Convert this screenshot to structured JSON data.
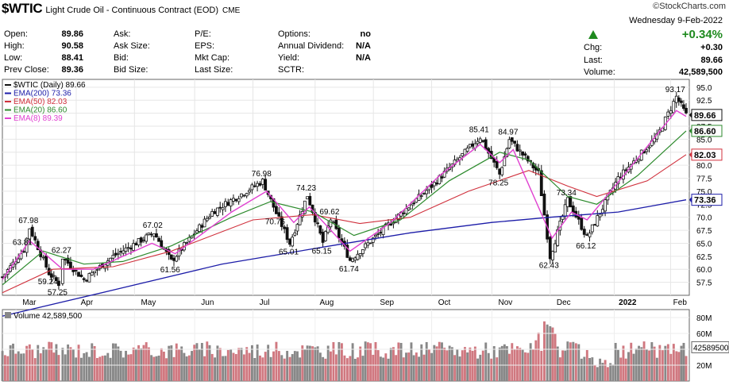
{
  "header": {
    "symbol": "$WTIC",
    "description": "Light Crude Oil - Continuous Contract (EOD)",
    "exchange": "CME",
    "brand": "©StockCharts.com"
  },
  "stats": [
    {
      "label": "Open:",
      "value": "89.86"
    },
    {
      "label": "High:",
      "value": "90.58"
    },
    {
      "label": "Low:",
      "value": "88.41"
    },
    {
      "label": "Prev Close:",
      "value": "89.36"
    },
    {
      "label": "Ask:",
      "value": ""
    },
    {
      "label": "Ask Size:",
      "value": ""
    },
    {
      "label": "Bid:",
      "value": ""
    },
    {
      "label": "Bid Size:",
      "value": ""
    },
    {
      "label": "P/E:",
      "value": ""
    },
    {
      "label": "EPS:",
      "value": ""
    },
    {
      "label": "Mkt Cap:",
      "value": ""
    },
    {
      "label": "Last Size:",
      "value": ""
    },
    {
      "label": "Options:",
      "value": "no"
    },
    {
      "label": "Annual Dividend:",
      "value": "N/A"
    },
    {
      "label": "Yield:",
      "value": "N/A"
    },
    {
      "label": "SCTR:",
      "value": ""
    }
  ],
  "quote": {
    "date": "Wednesday  9-Feb-2022",
    "pct_change": "+0.34%",
    "chg_label": "Chg:",
    "chg": "+0.30",
    "last_label": "Last:",
    "last": "89.66",
    "volume_label": "Volume:",
    "volume": "42,589,500"
  },
  "colors": {
    "up": "#1e8a1e",
    "ema200": "#1c1ca8",
    "ema50": "#d0303c",
    "ema20": "#2c8a2c",
    "ema8": "#e040d0",
    "price": "#111111",
    "vol_up": "#888888",
    "vol_down": "#d07880"
  },
  "chart_data": {
    "type": "line",
    "legend": {
      "price": "$WTIC (Daily) 89.66",
      "ema200": "EMA(200) 73.36",
      "ema50": "EMA(50) 82.03",
      "ema20": "EMA(20) 86.60",
      "ema8": "EMA(8) 89.39"
    },
    "x_ticks": [
      "Mar",
      "Apr",
      "May",
      "Jun",
      "Jul",
      "Aug",
      "Sep",
      "Oct",
      "Nov",
      "Dec",
      "2022",
      "Feb"
    ],
    "ylim": [
      55.0,
      96.5
    ],
    "y_ticks": [
      "95.0",
      "92.5",
      "90.0",
      "87.5",
      "85.0",
      "82.5",
      "80.0",
      "77.5",
      "75.0",
      "72.5",
      "70.0",
      "67.5",
      "65.0",
      "62.5",
      "60.0",
      "57.5"
    ],
    "price_markers": [
      {
        "label": "89.66",
        "value": 89.66,
        "color": "#111111"
      },
      {
        "label": "86.60",
        "value": 86.6,
        "color": "#2c8a2c"
      },
      {
        "label": "82.03",
        "value": 82.03,
        "color": "#d0303c"
      },
      {
        "label": "73.36",
        "value": 73.36,
        "color": "#1c1ca8"
      }
    ],
    "price_series": [
      {
        "x": "Feb 22",
        "y": 58.5
      },
      {
        "x": "Mar 5",
        "y": 63.81
      },
      {
        "x": "Mar 8",
        "y": 67.98
      },
      {
        "x": "Mar 18",
        "y": 59.24
      },
      {
        "x": "Mar 23",
        "y": 57.25
      },
      {
        "x": "Mar 25",
        "y": 62.27
      },
      {
        "x": "Apr 5",
        "y": 58.0
      },
      {
        "x": "Apr 20",
        "y": 62.5
      },
      {
        "x": "May 11",
        "y": 67.02
      },
      {
        "x": "May 20",
        "y": 61.56
      },
      {
        "x": "Jun 10",
        "y": 71.0
      },
      {
        "x": "Jul 6",
        "y": 76.98
      },
      {
        "x": "Jul 13",
        "y": 70.76
      },
      {
        "x": "Jul 20",
        "y": 65.01
      },
      {
        "x": "Jul 29",
        "y": 74.23
      },
      {
        "x": "Aug 6",
        "y": 65.15
      },
      {
        "x": "Aug 10",
        "y": 69.62
      },
      {
        "x": "Aug 20",
        "y": 61.74
      },
      {
        "x": "Sep 10",
        "y": 69.0
      },
      {
        "x": "Oct 1",
        "y": 76.0
      },
      {
        "x": "Oct 26",
        "y": 85.41
      },
      {
        "x": "Nov 5",
        "y": 78.25
      },
      {
        "x": "Nov 10",
        "y": 84.97
      },
      {
        "x": "Nov 25",
        "y": 78.5
      },
      {
        "x": "Dec 1",
        "y": 62.43
      },
      {
        "x": "Dec 10",
        "y": 73.34
      },
      {
        "x": "Dec 20",
        "y": 66.12
      },
      {
        "x": "Jan 5",
        "y": 77.5
      },
      {
        "x": "Jan 25",
        "y": 85.5
      },
      {
        "x": "Feb 4",
        "y": 93.17
      },
      {
        "x": "Feb 9",
        "y": 89.66
      }
    ],
    "ema200": [
      {
        "x": "Feb 22",
        "y": 51.0
      },
      {
        "x": "Apr 20",
        "y": 56.0
      },
      {
        "x": "Jun 15",
        "y": 61.0
      },
      {
        "x": "Aug 10",
        "y": 64.5
      },
      {
        "x": "Sep 20",
        "y": 67.0
      },
      {
        "x": "Nov 1",
        "y": 69.0
      },
      {
        "x": "Dec 1",
        "y": 70.0
      },
      {
        "x": "Jan 5",
        "y": 71.0
      },
      {
        "x": "Feb 9",
        "y": 73.36
      }
    ],
    "ema50": [
      {
        "x": "Feb 22",
        "y": 55.5
      },
      {
        "x": "Mar 20",
        "y": 60.0
      },
      {
        "x": "Apr 20",
        "y": 60.5
      },
      {
        "x": "May 20",
        "y": 63.5
      },
      {
        "x": "Jul 1",
        "y": 69.5
      },
      {
        "x": "Aug 1",
        "y": 70.5
      },
      {
        "x": "Aug 25",
        "y": 68.8
      },
      {
        "x": "Sep 20",
        "y": 70.0
      },
      {
        "x": "Oct 20",
        "y": 75.0
      },
      {
        "x": "Nov 20",
        "y": 79.0
      },
      {
        "x": "Dec 10",
        "y": 76.0
      },
      {
        "x": "Dec 25",
        "y": 74.0
      },
      {
        "x": "Jan 20",
        "y": 77.0
      },
      {
        "x": "Feb 9",
        "y": 82.03
      }
    ],
    "ema20": [
      {
        "x": "Feb 22",
        "y": 57.0
      },
      {
        "x": "Mar 15",
        "y": 63.5
      },
      {
        "x": "Apr 5",
        "y": 61.0
      },
      {
        "x": "Apr 25",
        "y": 61.5
      },
      {
        "x": "May 20",
        "y": 64.5
      },
      {
        "x": "Jun 20",
        "y": 70.0
      },
      {
        "x": "Jul 10",
        "y": 73.0
      },
      {
        "x": "Aug 1",
        "y": 71.0
      },
      {
        "x": "Aug 22",
        "y": 66.5
      },
      {
        "x": "Sep 15",
        "y": 69.5
      },
      {
        "x": "Oct 10",
        "y": 77.0
      },
      {
        "x": "Nov 5",
        "y": 82.5
      },
      {
        "x": "Nov 20",
        "y": 81.0
      },
      {
        "x": "Dec 10",
        "y": 74.0
      },
      {
        "x": "Dec 25",
        "y": 72.5
      },
      {
        "x": "Jan 15",
        "y": 78.0
      },
      {
        "x": "Feb 9",
        "y": 86.6
      }
    ],
    "ema8": [
      {
        "x": "Feb 22",
        "y": 58.0
      },
      {
        "x": "Mar 8",
        "y": 65.5
      },
      {
        "x": "Mar 25",
        "y": 60.0
      },
      {
        "x": "Apr 10",
        "y": 60.0
      },
      {
        "x": "May 10",
        "y": 65.0
      },
      {
        "x": "May 22",
        "y": 63.0
      },
      {
        "x": "Jun 20",
        "y": 71.0
      },
      {
        "x": "Jul 8",
        "y": 75.0
      },
      {
        "x": "Jul 22",
        "y": 69.0
      },
      {
        "x": "Jul 30",
        "y": 72.0
      },
      {
        "x": "Aug 20",
        "y": 63.5
      },
      {
        "x": "Sep 10",
        "y": 69.0
      },
      {
        "x": "Oct 5",
        "y": 78.0
      },
      {
        "x": "Oct 26",
        "y": 84.0
      },
      {
        "x": "Nov 5",
        "y": 80.5
      },
      {
        "x": "Nov 12",
        "y": 83.0
      },
      {
        "x": "Dec 2",
        "y": 66.0
      },
      {
        "x": "Dec 12",
        "y": 71.0
      },
      {
        "x": "Dec 20",
        "y": 69.5
      },
      {
        "x": "Jan 10",
        "y": 79.0
      },
      {
        "x": "Feb 4",
        "y": 90.5
      },
      {
        "x": "Feb 9",
        "y": 89.39
      }
    ],
    "annotations": [
      {
        "label": "63.81",
        "x": "Mar 5",
        "y": 63.81,
        "pos": "above"
      },
      {
        "label": "67.98",
        "x": "Mar 8",
        "y": 67.98,
        "pos": "above"
      },
      {
        "label": "59.24",
        "x": "Mar 18",
        "y": 59.24,
        "pos": "below"
      },
      {
        "label": "57.25",
        "x": "Mar 23",
        "y": 57.25,
        "pos": "below"
      },
      {
        "label": "62.27",
        "x": "Mar 25",
        "y": 62.27,
        "pos": "above"
      },
      {
        "label": "67.02",
        "x": "May 11",
        "y": 67.02,
        "pos": "above"
      },
      {
        "label": "61.56",
        "x": "May 20",
        "y": 61.56,
        "pos": "below"
      },
      {
        "label": "76.98",
        "x": "Jul 6",
        "y": 76.98,
        "pos": "above"
      },
      {
        "label": "70.76",
        "x": "Jul 13",
        "y": 70.76,
        "pos": "below"
      },
      {
        "label": "65.01",
        "x": "Jul 20",
        "y": 65.01,
        "pos": "below"
      },
      {
        "label": "74.23",
        "x": "Jul 29",
        "y": 74.23,
        "pos": "above"
      },
      {
        "label": "65.15",
        "x": "Aug 6",
        "y": 65.15,
        "pos": "below"
      },
      {
        "label": "69.62",
        "x": "Aug 10",
        "y": 69.62,
        "pos": "above"
      },
      {
        "label": "61.74",
        "x": "Aug 20",
        "y": 61.74,
        "pos": "below"
      },
      {
        "label": "85.41",
        "x": "Oct 26",
        "y": 85.41,
        "pos": "above"
      },
      {
        "label": "78.25",
        "x": "Nov 5",
        "y": 78.25,
        "pos": "below"
      },
      {
        "label": "84.97",
        "x": "Nov 10",
        "y": 84.97,
        "pos": "above"
      },
      {
        "label": "62.43",
        "x": "Dec 1",
        "y": 62.43,
        "pos": "below"
      },
      {
        "label": "73.34",
        "x": "Dec 10",
        "y": 73.34,
        "pos": "above"
      },
      {
        "label": "66.12",
        "x": "Dec 20",
        "y": 66.12,
        "pos": "below"
      },
      {
        "label": "93.17",
        "x": "Feb 4",
        "y": 93.17,
        "pos": "above"
      }
    ],
    "volume": {
      "legend": "Volume 42,589,500",
      "ylim": [
        0,
        90
      ],
      "y_ticks": [
        "80M",
        "60M",
        "40M",
        "20M"
      ],
      "last_marker": {
        "label": "42589500",
        "value": 42.59
      }
    }
  }
}
